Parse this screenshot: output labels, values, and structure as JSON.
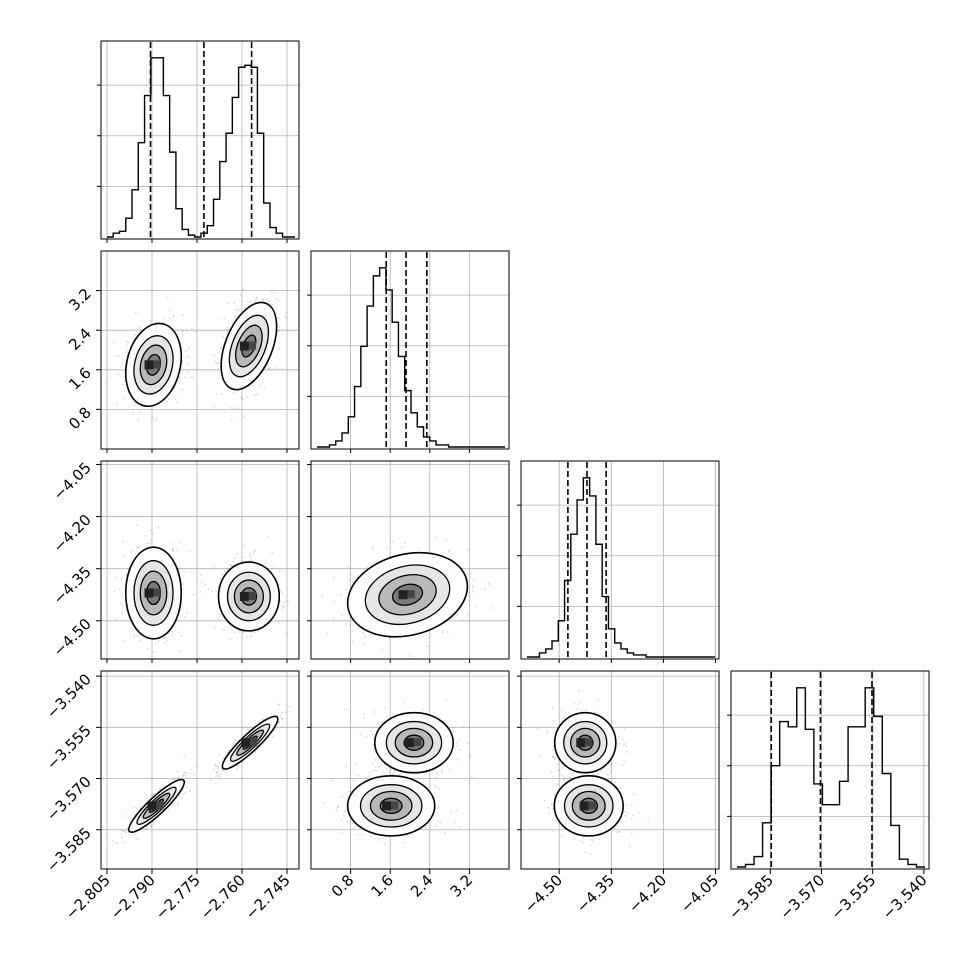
{
  "chart_data": {
    "type": "corner",
    "parameters": [
      {
        "id": "p0",
        "range": [
          -2.807,
          -2.741
        ],
        "ticks": [
          "−2.805",
          "−2.790",
          "−2.775",
          "−2.760",
          "−2.745"
        ],
        "tick_values": [
          -2.805,
          -2.79,
          -2.775,
          -2.76,
          -2.745
        ],
        "quantiles": [
          -2.7905,
          -2.7727,
          -2.7568
        ],
        "histogram": [
          0.0,
          0.02,
          0.03,
          0.1,
          0.25,
          0.5,
          0.75,
          0.95,
          0.95,
          0.75,
          0.45,
          0.15,
          0.04,
          0.01,
          0.0,
          0.02,
          0.06,
          0.2,
          0.4,
          0.55,
          0.74,
          0.9,
          0.91,
          0.9,
          0.55,
          0.18,
          0.05,
          0.02,
          0.0,
          0.0
        ]
      },
      {
        "id": "p1",
        "range": [
          0.0,
          4.0
        ],
        "ticks": [
          "0.8",
          "1.6",
          "2.4",
          "3.2"
        ],
        "tick_values": [
          0.8,
          1.6,
          2.4,
          3.2
        ],
        "quantiles": [
          1.52,
          1.92,
          2.34
        ],
        "histogram": [
          0.0,
          0.0,
          0.01,
          0.03,
          0.07,
          0.15,
          0.3,
          0.5,
          0.7,
          0.85,
          0.89,
          0.78,
          0.62,
          0.45,
          0.28,
          0.17,
          0.1,
          0.05,
          0.03,
          0.01,
          0.01,
          0.0,
          0.0,
          0.0,
          0.0,
          0.0,
          0.0,
          0.0,
          0.0,
          0.0
        ]
      },
      {
        "id": "p2",
        "range": [
          -4.61,
          -4.04
        ],
        "ticks": [
          "−4.50",
          "−4.35",
          "−4.20",
          "−4.05"
        ],
        "tick_values": [
          -4.5,
          -4.35,
          -4.2,
          -4.05
        ],
        "quantiles": [
          -4.475,
          -4.42,
          -4.365
        ],
        "histogram": [
          0.0,
          0.0,
          0.02,
          0.04,
          0.08,
          0.18,
          0.38,
          0.61,
          0.78,
          0.89,
          0.8,
          0.56,
          0.3,
          0.14,
          0.07,
          0.04,
          0.02,
          0.01,
          0.01,
          0.0,
          0.0,
          0.0,
          0.0,
          0.0,
          0.0,
          0.0,
          0.0,
          0.0,
          0.0,
          0.0
        ]
      },
      {
        "id": "p3",
        "range": [
          -3.5965,
          -3.5385
        ],
        "ticks": [
          "−3.585",
          "−3.570",
          "−3.555",
          "−3.540"
        ],
        "tick_values": [
          -3.585,
          -3.57,
          -3.555,
          -3.54
        ],
        "quantiles": [
          -3.5847,
          -3.5703,
          -3.5552
        ],
        "histogram": [
          0.0,
          0.01,
          0.04,
          0.17,
          0.39,
          0.56,
          0.54,
          0.69,
          0.53,
          0.32,
          0.24,
          0.24,
          0.33,
          0.54,
          0.54,
          0.69,
          0.58,
          0.36,
          0.16,
          0.03,
          0.01,
          0.0
        ]
      }
    ],
    "pairs": [
      {
        "x": "p0",
        "y": "p1",
        "modes": [
          [
            -2.7895,
            1.7,
            0.0042,
            0.38,
            0.2
          ],
          [
            -2.7577,
            2.08,
            0.0042,
            0.4,
            0.45
          ]
        ]
      },
      {
        "x": "p0",
        "y": "p2",
        "modes": [
          [
            -2.7895,
            -4.42,
            0.0042,
            0.06,
            0.0
          ],
          [
            -2.7577,
            -4.43,
            0.0046,
            0.045,
            0.0
          ]
        ]
      },
      {
        "x": "p1",
        "y": "p2",
        "modes": [
          [
            1.95,
            -4.425,
            0.55,
            0.055,
            0.2
          ]
        ]
      },
      {
        "x": "p0",
        "y": "p3",
        "modes": [
          [
            -2.7885,
            -3.578,
            0.0042,
            0.0035,
            0.9
          ],
          [
            -2.7573,
            -3.5595,
            0.0042,
            0.0035,
            0.9
          ]
        ]
      },
      {
        "x": "p1",
        "y": "p3",
        "modes": [
          [
            1.62,
            -3.578,
            0.4,
            0.004,
            0.0
          ],
          [
            2.08,
            -3.5595,
            0.36,
            0.004,
            0.0
          ]
        ]
      },
      {
        "x": "p2",
        "y": "p3",
        "modes": [
          [
            -4.415,
            -3.578,
            0.045,
            0.004,
            0.0
          ],
          [
            -4.425,
            -3.5595,
            0.04,
            0.004,
            0.0
          ]
        ]
      }
    ],
    "grid": true,
    "xlabel": "",
    "ylabel": ""
  }
}
